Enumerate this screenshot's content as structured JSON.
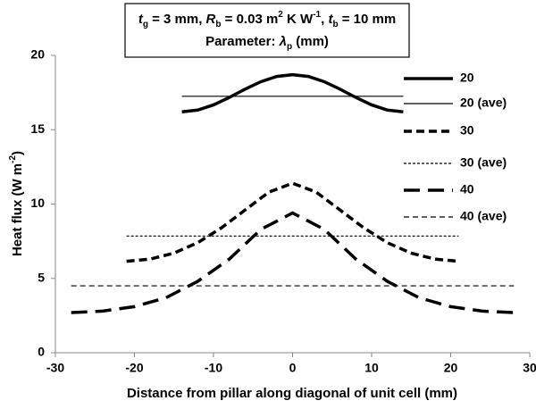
{
  "chart_data": {
    "type": "line",
    "title": [
      [
        "t",
        "g",
        " = 3 mm, ",
        "R",
        "b",
        " = 0.03 m",
        "2",
        " K W",
        "-1",
        ", ",
        "t",
        "b",
        " = 10 mm"
      ],
      [
        "Parameter: ",
        "λ",
        "p",
        " (mm)"
      ]
    ],
    "x_label": "Distance from pillar along diagonal of unit cell (mm)",
    "y_label": [
      "Heat flux (W m",
      "-2",
      ")"
    ],
    "xlim": [
      -30,
      30
    ],
    "xticks": [
      -30,
      -20,
      -10,
      0,
      10,
      20,
      30
    ],
    "ylim": [
      0,
      20
    ],
    "yticks": [
      0,
      5,
      10,
      15,
      20
    ],
    "grid": false,
    "legend": "right",
    "series": [
      {
        "name": "20",
        "color": "#000000",
        "style": "solid-thick",
        "x": [
          -14,
          -12,
          -10,
          -8,
          -6,
          -4,
          -2,
          0,
          2,
          4,
          6,
          8,
          10,
          12,
          14
        ],
        "values": [
          16.2,
          16.32,
          16.67,
          17.17,
          17.73,
          18.23,
          18.58,
          18.7,
          18.58,
          18.23,
          17.73,
          17.17,
          16.67,
          16.32,
          16.2
        ]
      },
      {
        "name": "20 (ave)",
        "color": "#000000",
        "style": "solid-thin",
        "x": [
          -14,
          14
        ],
        "values": [
          17.25,
          17.25
        ]
      },
      {
        "name": "30",
        "color": "#000000",
        "style": "dash-thick",
        "x": [
          -21,
          -18,
          -15,
          -12,
          -9,
          -6,
          -3,
          0,
          3,
          6,
          9,
          12,
          15,
          18,
          21
        ],
        "values": [
          6.15,
          6.3,
          6.7,
          7.4,
          8.4,
          9.6,
          10.8,
          11.4,
          10.8,
          9.6,
          8.4,
          7.4,
          6.7,
          6.3,
          6.15
        ]
      },
      {
        "name": "30 (ave)",
        "color": "#000000",
        "style": "dot-thin",
        "x": [
          -21,
          21
        ],
        "values": [
          7.85,
          7.85
        ]
      },
      {
        "name": "40",
        "color": "#000000",
        "style": "longdash-thick",
        "x": [
          -28,
          -24,
          -20,
          -16,
          -12,
          -8,
          -4,
          0,
          4,
          8,
          12,
          16,
          20,
          24,
          28
        ],
        "values": [
          2.7,
          2.8,
          3.1,
          3.7,
          4.8,
          6.3,
          8.3,
          9.4,
          8.3,
          6.3,
          4.8,
          3.7,
          3.1,
          2.8,
          2.7
        ]
      },
      {
        "name": "40 (ave)",
        "color": "#000000",
        "style": "dash-thin",
        "x": [
          -28,
          28
        ],
        "values": [
          4.5,
          4.5
        ]
      }
    ]
  }
}
